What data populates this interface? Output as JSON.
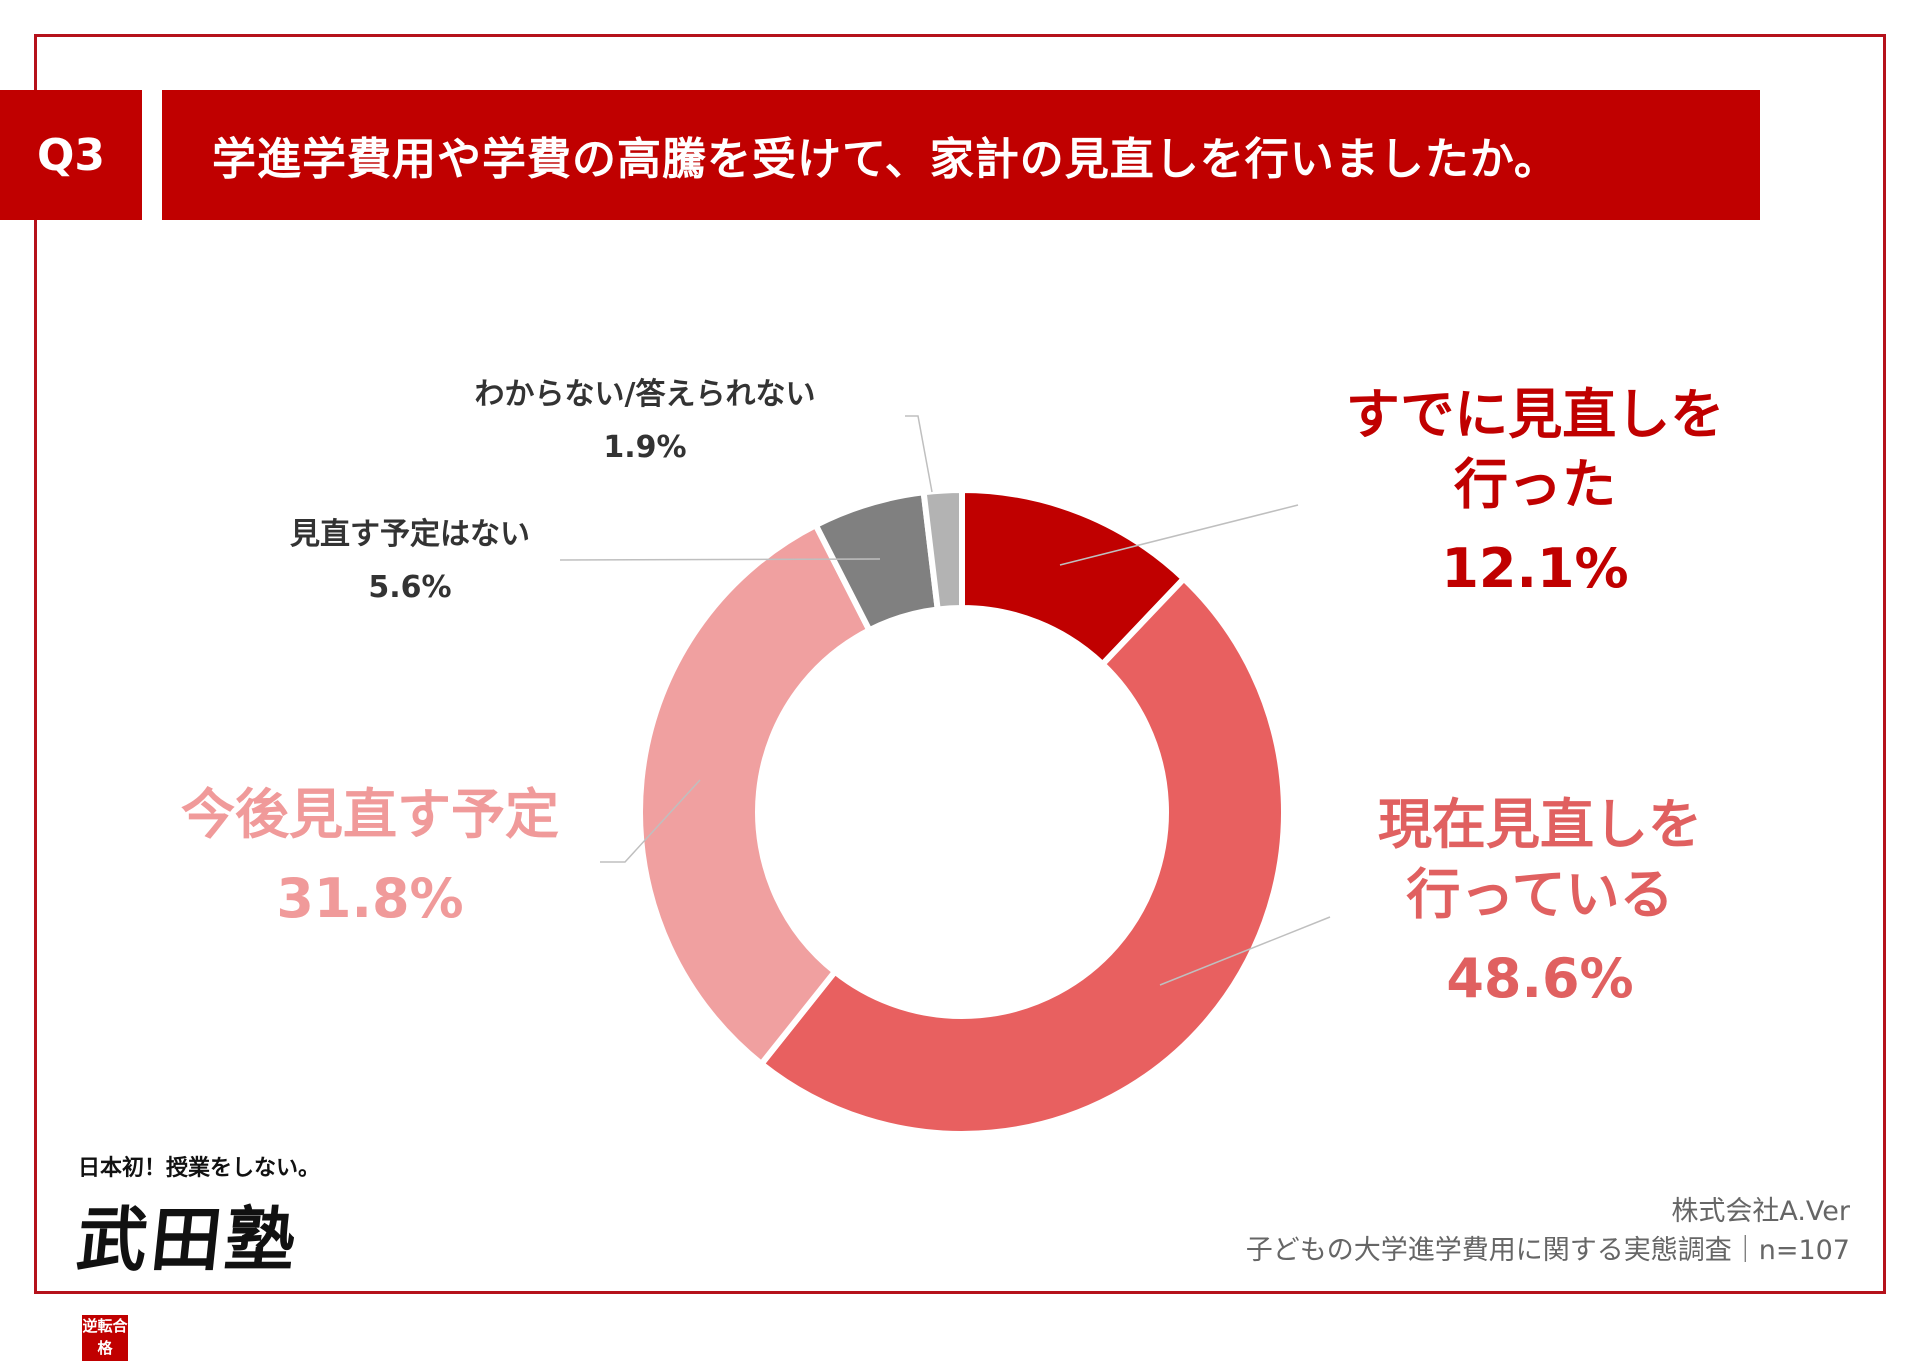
{
  "header": {
    "question_number": "Q3",
    "question": "学進学費用や学費の高騰を受けて、家計の見直しを行いましたか。"
  },
  "chart_data": {
    "type": "donut",
    "segments": [
      {
        "label": "すでに見直しを行った",
        "label_lines": [
          "すでに見直しを",
          "行った"
        ],
        "value": 12.1,
        "value_label": "12.1%",
        "color": "#c00000",
        "label_color": "#c00000",
        "size": "large"
      },
      {
        "label": "現在見直しを行っている",
        "label_lines": [
          "現在見直しを",
          "行っている"
        ],
        "value": 48.6,
        "value_label": "48.6%",
        "color": "#e86060",
        "label_color": "#e06060",
        "size": "large"
      },
      {
        "label": "今後見直す予定",
        "label_lines": [
          "今後見直す予定"
        ],
        "value": 31.8,
        "value_label": "31.8%",
        "color": "#f0a0a0",
        "label_color": "#f09a9a",
        "size": "large"
      },
      {
        "label": "見直す予定はない",
        "label_lines": [
          "見直す予定はない"
        ],
        "value": 5.6,
        "value_label": "5.6%",
        "color": "#808080",
        "label_color": "#333333",
        "size": "small"
      },
      {
        "label": "わからない/答えられない",
        "label_lines": [
          "わからない/答えられない"
        ],
        "value": 1.9,
        "value_label": "1.9%",
        "color": "#b3b3b3",
        "label_color": "#333333",
        "size": "small"
      }
    ]
  },
  "logo": {
    "tagline": "日本初！授業をしない。",
    "name": "武田塾",
    "seal": "逆転合格"
  },
  "footer": {
    "company": "株式会社A.Ver",
    "survey": "子どもの大学進学費用に関する実態調査｜n=107"
  }
}
